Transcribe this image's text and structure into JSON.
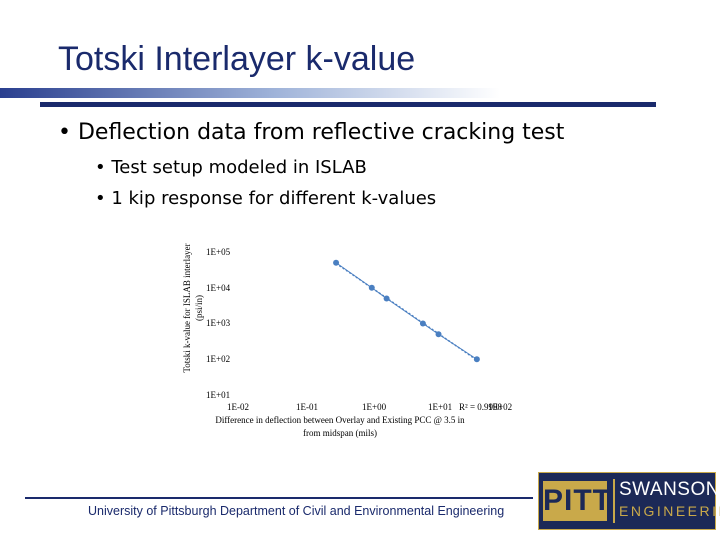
{
  "slide": {
    "title": "Totski Interlayer k-value",
    "bullets": [
      "• Deflection data from reflective cracking test",
      "• Test setup modeled in ISLAB",
      "• 1 kip response for different k-values"
    ],
    "footer": "University of Pittsburgh Department of Civil and Environmental Engineering"
  },
  "logo": {
    "pitt": "PITT",
    "swanson": "SWANSON",
    "engineering": "ENGINEERING",
    "colors": {
      "navy": "#1c2957",
      "gold": "#c9a94a"
    }
  },
  "chart_data": {
    "type": "scatter",
    "ylabel_line1": "Totski k-value for ISLAB interlayer",
    "ylabel_line2": "(psi/in)",
    "xlabel_line1": "Difference in deflection between Overlay and Existing PCC @ 3.5 in",
    "xlabel_line2": "from midspan (mils)",
    "y_scale": "log",
    "x_scale": "log",
    "ylim": [
      10,
      100000
    ],
    "xlim": [
      0.01,
      100
    ],
    "y_ticks": [
      "1E+05",
      "1E+04",
      "1E+03",
      "1E+02",
      "1E+01"
    ],
    "x_ticks": [
      "1E-02",
      "1E-01",
      "1E+00",
      "1E+01",
      "1E+02"
    ],
    "r2_label": "R² = 0.9998",
    "series": [
      {
        "color": "#4a7fc1",
        "x": [
          0.35,
          1.2,
          2.0,
          7.0,
          12.0,
          45.0
        ],
        "y": [
          50000,
          10000,
          5000,
          1000,
          500,
          100
        ]
      }
    ],
    "trendline": {
      "style": "dotted",
      "x": [
        0.35,
        45.0
      ]
    }
  }
}
